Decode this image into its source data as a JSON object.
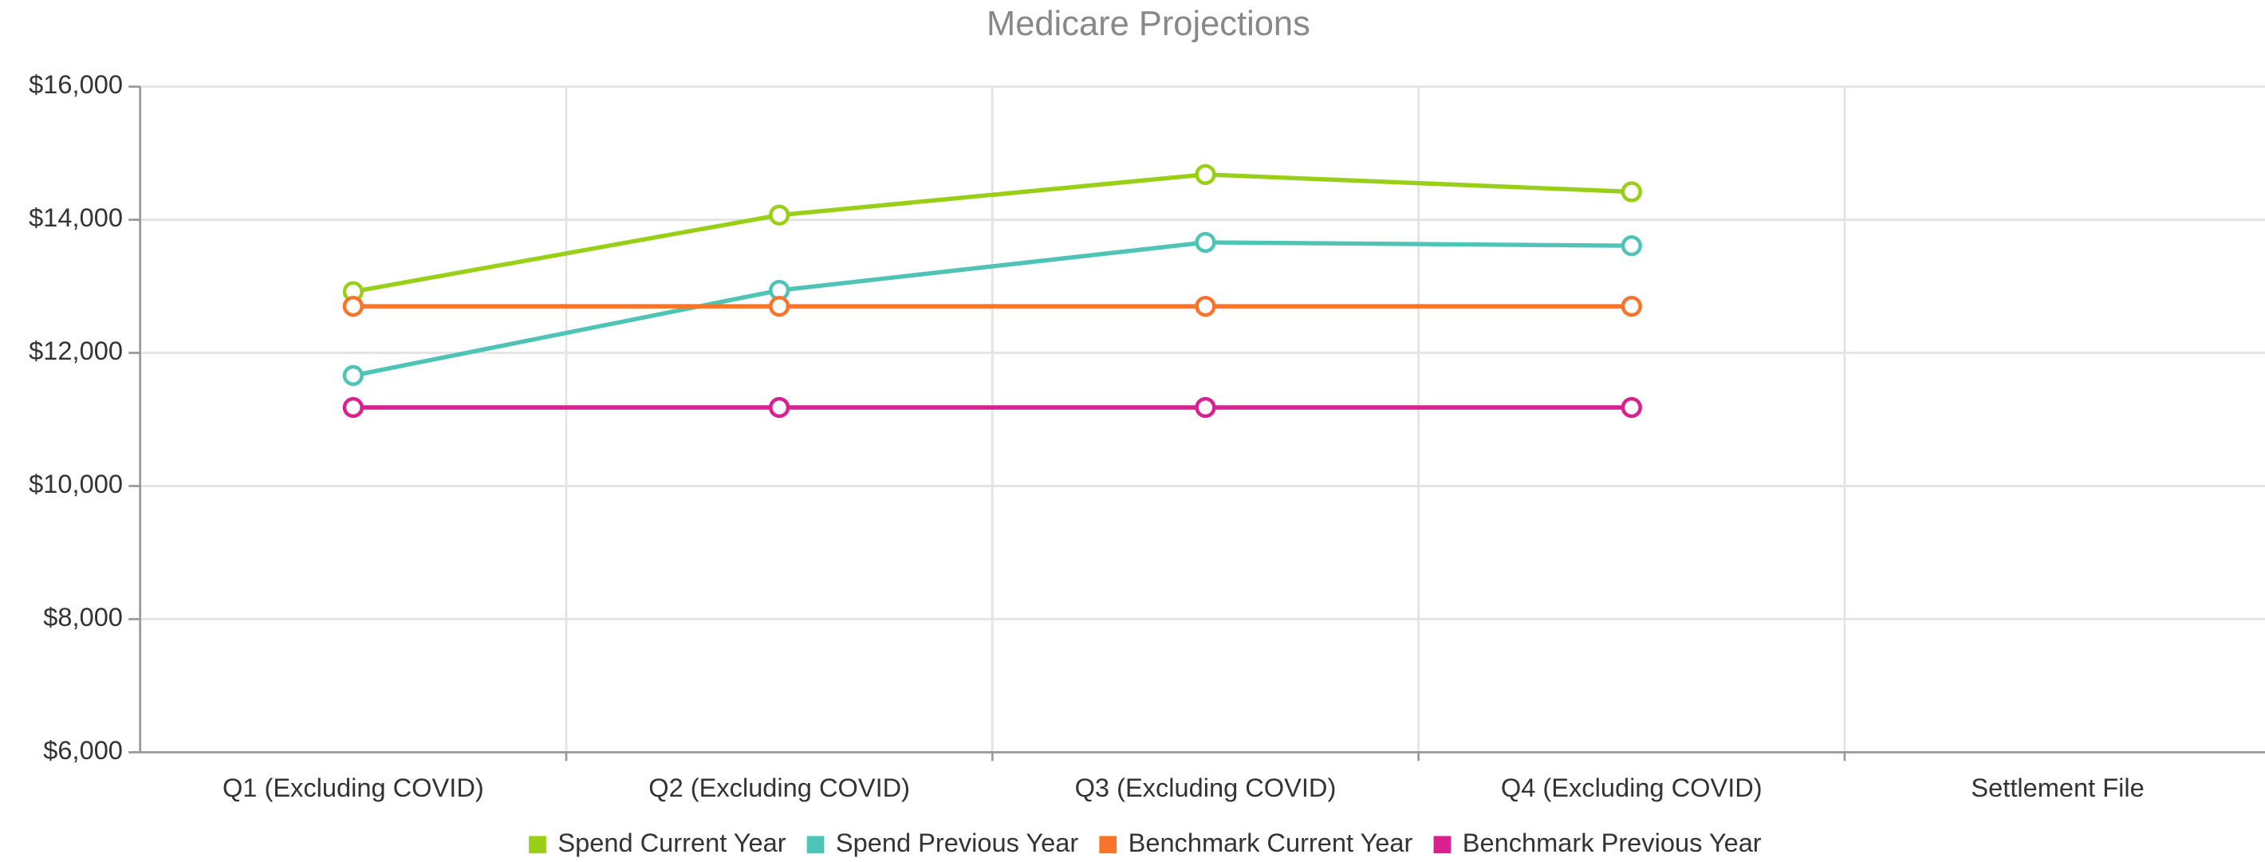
{
  "chart_data": {
    "type": "line",
    "title": "Medicare Projections",
    "categories": [
      "Q1 (Excluding COVID)",
      "Q2 (Excluding COVID)",
      "Q3 (Excluding COVID)",
      "Q4 (Excluding COVID)",
      "Settlement File"
    ],
    "series": [
      {
        "name": "Spend Current Year",
        "color": "#99cf16",
        "values": [
          12920,
          14070,
          14680,
          14420,
          null
        ]
      },
      {
        "name": "Spend Previous Year",
        "color": "#4fc4b6",
        "values": [
          11660,
          12940,
          13660,
          13610,
          null
        ]
      },
      {
        "name": "Benchmark Current Year",
        "color": "#f7742a",
        "values": [
          12700,
          12700,
          12700,
          12700,
          null
        ]
      },
      {
        "name": "Benchmark Previous Year",
        "color": "#d6218f",
        "values": [
          11180,
          11180,
          11180,
          11180,
          null
        ]
      }
    ],
    "ylim": [
      6000,
      16000
    ],
    "yticks": [
      {
        "value": 6000,
        "label": "$6,000"
      },
      {
        "value": 8000,
        "label": "$8,000"
      },
      {
        "value": 10000,
        "label": "$10,000"
      },
      {
        "value": 12000,
        "label": "$12,000"
      },
      {
        "value": 14000,
        "label": "$14,000"
      },
      {
        "value": 16000,
        "label": "$16,000"
      }
    ],
    "grid": true,
    "legend": "bottom"
  }
}
